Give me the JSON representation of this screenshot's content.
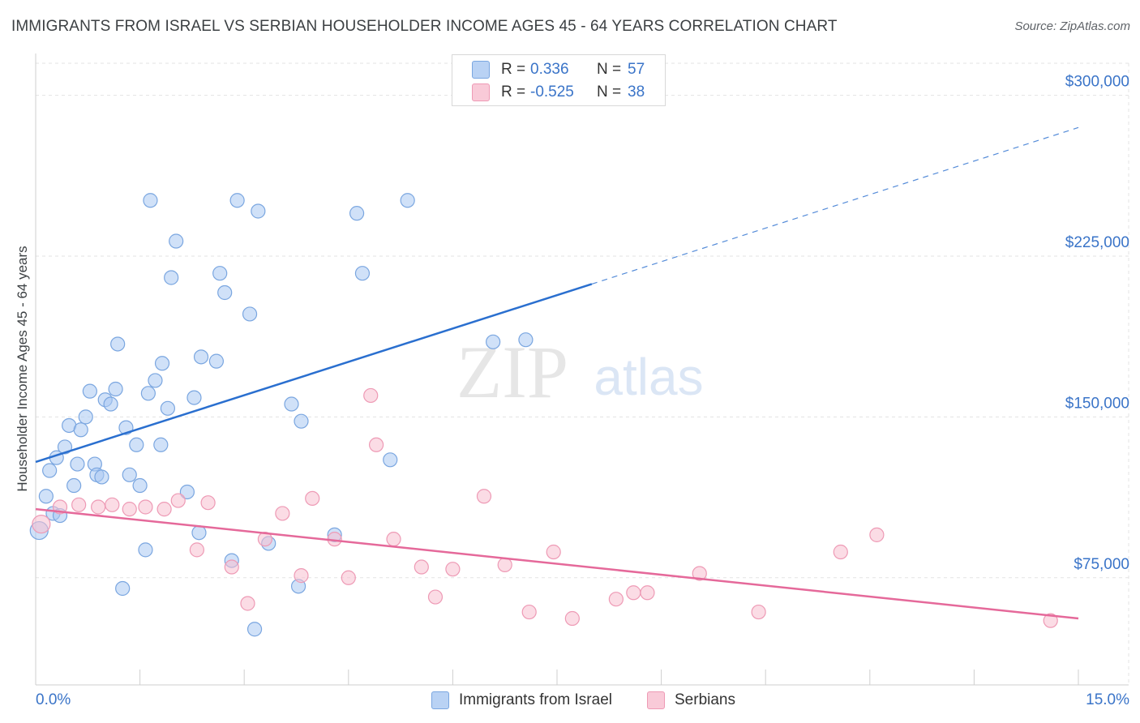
{
  "title": "IMMIGRANTS FROM ISRAEL VS SERBIAN HOUSEHOLDER INCOME AGES 45 - 64 YEARS CORRELATION CHART",
  "source": "Source: ZipAtlas.com",
  "watermark": {
    "zip": "ZIP",
    "atlas": "atlas"
  },
  "legend": {
    "rows": [
      {
        "r_label": "R =",
        "r_value": "0.336",
        "n_label": "N =",
        "n_value": "57"
      },
      {
        "r_label": "R =",
        "r_value": "-0.525",
        "n_label": "N =",
        "n_value": "38"
      }
    ]
  },
  "colors": {
    "israel_fill": "#a9c8f2",
    "israel_stroke": "#7aa6e0",
    "israel_line": "#2a6fcf",
    "serbian_fill": "#f7bfd0",
    "serbian_stroke": "#ee9ab5",
    "serbian_line": "#e5699a",
    "axis_text": "#3a74c8",
    "grid": "#e3e3e3"
  },
  "chart_data": {
    "type": "scatter",
    "title": "IMMIGRANTS FROM ISRAEL VS SERBIAN HOUSEHOLDER INCOME AGES 45 - 64 YEARS CORRELATION CHART",
    "xlabel": "",
    "ylabel": "Householder Income Ages 45 - 64 years",
    "xlim": [
      0,
      15
    ],
    "ylim": [
      25000,
      315000
    ],
    "x_tick_labels": [
      "0.0%",
      "15.0%"
    ],
    "y_ticks": [
      75000,
      150000,
      225000,
      300000
    ],
    "y_tick_labels": [
      "$75,000",
      "$150,000",
      "$225,000",
      "$300,000"
    ],
    "grid": true,
    "legend_position": "top-center",
    "series": [
      {
        "name": "Immigrants from Israel",
        "color": "#a9c8f2",
        "trend": {
          "x": [
            0.0,
            8.0
          ],
          "y": [
            129000,
            212000
          ],
          "dashed_to": [
            15.0,
            285000
          ]
        },
        "points": [
          [
            0.05,
            97000
          ],
          [
            0.15,
            113000
          ],
          [
            0.2,
            125000
          ],
          [
            0.25,
            105000
          ],
          [
            0.3,
            131000
          ],
          [
            0.35,
            104000
          ],
          [
            0.42,
            136000
          ],
          [
            0.48,
            146000
          ],
          [
            0.55,
            118000
          ],
          [
            0.6,
            128000
          ],
          [
            0.65,
            144000
          ],
          [
            0.72,
            150000
          ],
          [
            0.78,
            162000
          ],
          [
            0.85,
            128000
          ],
          [
            0.88,
            123000
          ],
          [
            0.95,
            122000
          ],
          [
            1.0,
            158000
          ],
          [
            1.08,
            156000
          ],
          [
            1.15,
            163000
          ],
          [
            1.18,
            184000
          ],
          [
            1.3,
            145000
          ],
          [
            1.35,
            123000
          ],
          [
            1.45,
            137000
          ],
          [
            1.5,
            118000
          ],
          [
            1.58,
            88000
          ],
          [
            1.62,
            161000
          ],
          [
            1.65,
            251000
          ],
          [
            1.72,
            167000
          ],
          [
            1.8,
            137000
          ],
          [
            1.82,
            175000
          ],
          [
            1.9,
            154000
          ],
          [
            1.95,
            215000
          ],
          [
            2.02,
            232000
          ],
          [
            2.18,
            115000
          ],
          [
            2.28,
            159000
          ],
          [
            2.35,
            96000
          ],
          [
            2.38,
            178000
          ],
          [
            2.6,
            176000
          ],
          [
            2.65,
            217000
          ],
          [
            2.72,
            208000
          ],
          [
            2.82,
            83000
          ],
          [
            2.9,
            251000
          ],
          [
            3.08,
            198000
          ],
          [
            3.15,
            51000
          ],
          [
            3.2,
            246000
          ],
          [
            3.35,
            91000
          ],
          [
            3.68,
            156000
          ],
          [
            3.78,
            71000
          ],
          [
            3.82,
            148000
          ],
          [
            4.3,
            95000
          ],
          [
            4.62,
            245000
          ],
          [
            4.7,
            217000
          ],
          [
            5.1,
            130000
          ],
          [
            5.35,
            251000
          ],
          [
            6.58,
            185000
          ],
          [
            7.05,
            186000
          ],
          [
            1.25,
            70000
          ]
        ]
      },
      {
        "name": "Serbians",
        "color": "#f7bfd0",
        "trend": {
          "x": [
            0.0,
            15.0
          ],
          "y": [
            107000,
            56000
          ]
        },
        "points": [
          [
            0.08,
            100000
          ],
          [
            0.35,
            108000
          ],
          [
            0.62,
            109000
          ],
          [
            0.9,
            108000
          ],
          [
            1.1,
            109000
          ],
          [
            1.35,
            107000
          ],
          [
            1.58,
            108000
          ],
          [
            1.85,
            107000
          ],
          [
            2.05,
            111000
          ],
          [
            2.32,
            88000
          ],
          [
            2.48,
            110000
          ],
          [
            2.82,
            80000
          ],
          [
            3.05,
            63000
          ],
          [
            3.3,
            93000
          ],
          [
            3.55,
            105000
          ],
          [
            3.82,
            76000
          ],
          [
            3.98,
            112000
          ],
          [
            4.3,
            93000
          ],
          [
            4.5,
            75000
          ],
          [
            4.82,
            160000
          ],
          [
            4.9,
            137000
          ],
          [
            5.15,
            93000
          ],
          [
            5.55,
            80000
          ],
          [
            5.75,
            66000
          ],
          [
            6.0,
            79000
          ],
          [
            6.45,
            113000
          ],
          [
            6.75,
            81000
          ],
          [
            7.1,
            59000
          ],
          [
            7.45,
            87000
          ],
          [
            7.72,
            56000
          ],
          [
            8.35,
            65000
          ],
          [
            8.6,
            68000
          ],
          [
            8.8,
            68000
          ],
          [
            9.55,
            77000
          ],
          [
            10.4,
            59000
          ],
          [
            11.58,
            87000
          ],
          [
            12.1,
            95000
          ],
          [
            14.6,
            55000
          ]
        ]
      }
    ]
  }
}
